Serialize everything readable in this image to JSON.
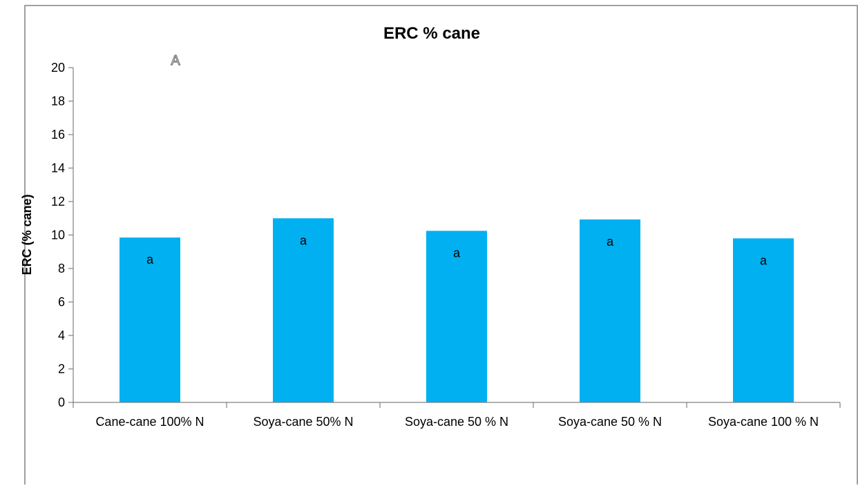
{
  "chart_data": {
    "type": "bar",
    "title": "ERC % cane",
    "panel_label": "A",
    "xlabel": "",
    "ylabel": "ERC (% cane)",
    "ylim": [
      0,
      20
    ],
    "yticks": [
      0,
      2,
      4,
      6,
      8,
      10,
      12,
      14,
      16,
      18,
      20
    ],
    "categories": [
      "Cane-cane 100% N",
      "Soya-cane 50% N",
      "Soya-cane 50 % N",
      "Soya-cane  50 % N",
      "Soya-cane 100 % N"
    ],
    "values": [
      9.85,
      11.0,
      10.25,
      10.93,
      9.8
    ],
    "data_labels": [
      "a",
      "a",
      "a",
      "a",
      "a"
    ],
    "bar_color": "#00B0F0",
    "grid": false,
    "legend": "none"
  }
}
